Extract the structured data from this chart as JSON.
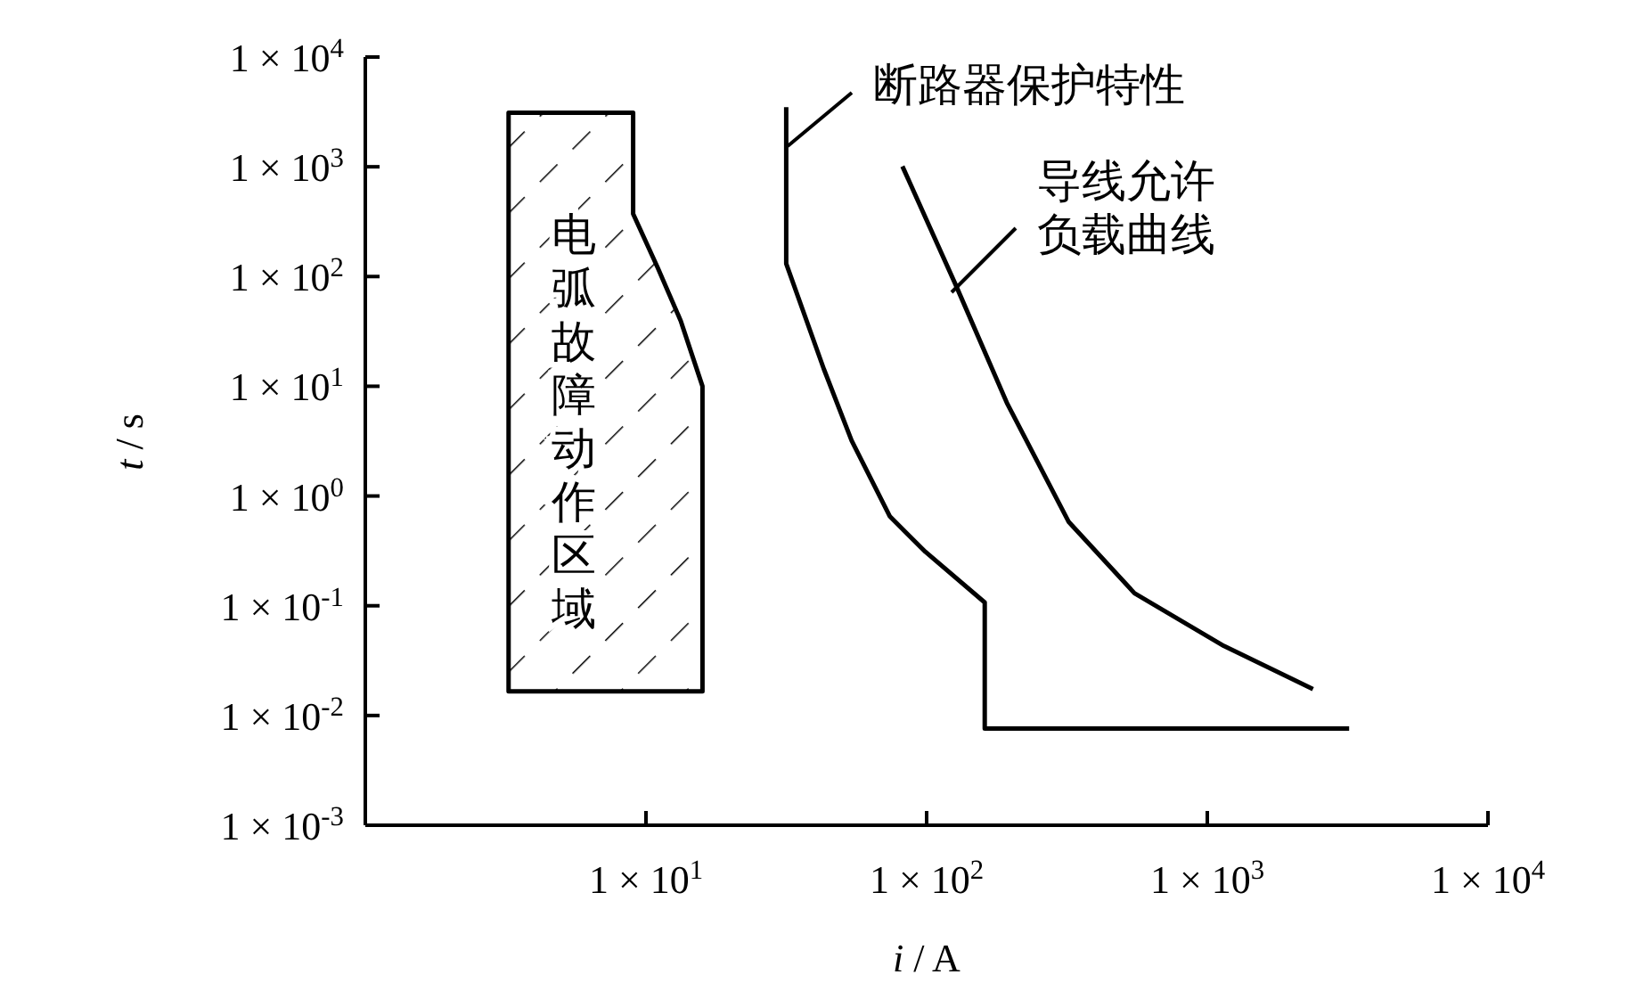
{
  "chart_data": {
    "type": "line",
    "xlabel": "*i* / A",
    "ylabel": "*t* / s",
    "log": "xy",
    "xlim": [
      1,
      10000
    ],
    "ylim": [
      0.001,
      10000
    ],
    "xticks": [
      {
        "value": 10,
        "label": "1 × 10$^{1}$"
      },
      {
        "value": 100,
        "label": "1 × 10$^{2}$"
      },
      {
        "value": 1000,
        "label": "1 × 10$^{3}$"
      },
      {
        "value": 10000,
        "label": "1 × 10$^{4}$"
      }
    ],
    "yticks": [
      {
        "value": 0.001,
        "label": "1 × 10$^{-3}$"
      },
      {
        "value": 0.01,
        "label": "1 × 10$^{-2}$"
      },
      {
        "value": 0.1,
        "label": "1 × 10$^{-1}$"
      },
      {
        "value": 1,
        "label": "1 × 10$^{0}$"
      },
      {
        "value": 10,
        "label": "1 × 10$^{1}$"
      },
      {
        "value": 100,
        "label": "1 × 10$^{2}$"
      },
      {
        "value": 1000,
        "label": "1 × 10$^{3}$"
      },
      {
        "value": 10000,
        "label": "1 × 10$^{4}$"
      }
    ],
    "grid": false,
    "marker": "none",
    "line_style": "solid",
    "series": [
      {
        "name": "断路器保护特性",
        "color": "#000000",
        "x": [
          31.6,
          31.6,
          43,
          54,
          74,
          99,
          161,
          161,
          3200
        ],
        "values": [
          3500,
          131,
          14.4,
          3.2,
          0.65,
          0.31,
          0.107,
          0.0076,
          0.0076
        ]
      },
      {
        "name": "导线允许负载曲线",
        "color": "#000000",
        "x": [
          82,
          127,
          194,
          321,
          550,
          1145,
          2380
        ],
        "values": [
          1010,
          84,
          6.9,
          0.58,
          0.13,
          0.043,
          0.0174
        ]
      },
      {
        "type": "area",
        "color": "#000000",
        "x": [
          3.24,
          9,
          9,
          11,
          13.3,
          15.9,
          15.9,
          3.24,
          3.24
        ],
        "values": [
          3100,
          3100,
          372,
          121,
          39.5,
          10,
          0.0166,
          0.0166,
          3100
        ]
      }
    ],
    "annotations": [
      "电弧故障动作区域"
    ]
  }
}
